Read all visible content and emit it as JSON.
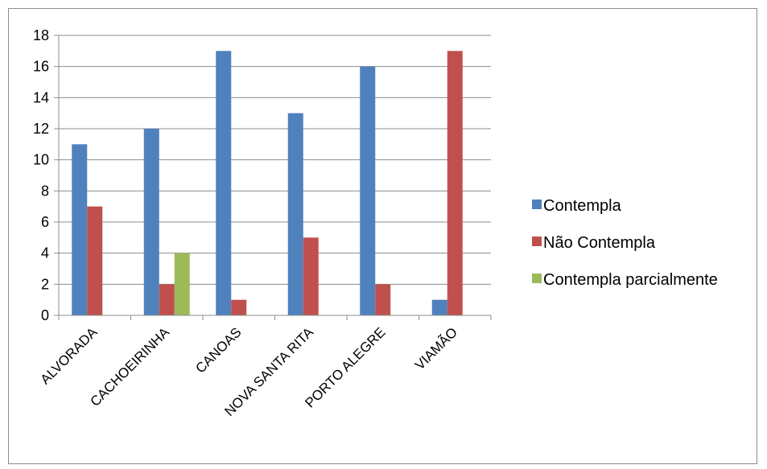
{
  "chart_data": {
    "type": "bar",
    "categories": [
      "ALVORADA",
      "CACHOEIRINHA",
      "CANOAS",
      "NOVA SANTA RITA",
      "PORTO ALEGRE",
      "VIAMÃO"
    ],
    "series": [
      {
        "name": "Contempla",
        "color": "#4F81BD",
        "values": [
          11,
          12,
          17,
          13,
          16,
          1
        ]
      },
      {
        "name": "Não Contempla",
        "color": "#C0504D",
        "values": [
          7,
          2,
          1,
          5,
          2,
          17
        ]
      },
      {
        "name": "Contempla parcialmente",
        "color": "#9BBB59",
        "values": [
          0,
          4,
          0,
          0,
          0,
          0
        ]
      }
    ],
    "ylim": [
      0,
      18
    ],
    "yticks": [
      0,
      2,
      4,
      6,
      8,
      10,
      12,
      14,
      16,
      18
    ],
    "grid": true,
    "legend": "right",
    "title": "",
    "xlabel": "",
    "ylabel": ""
  }
}
